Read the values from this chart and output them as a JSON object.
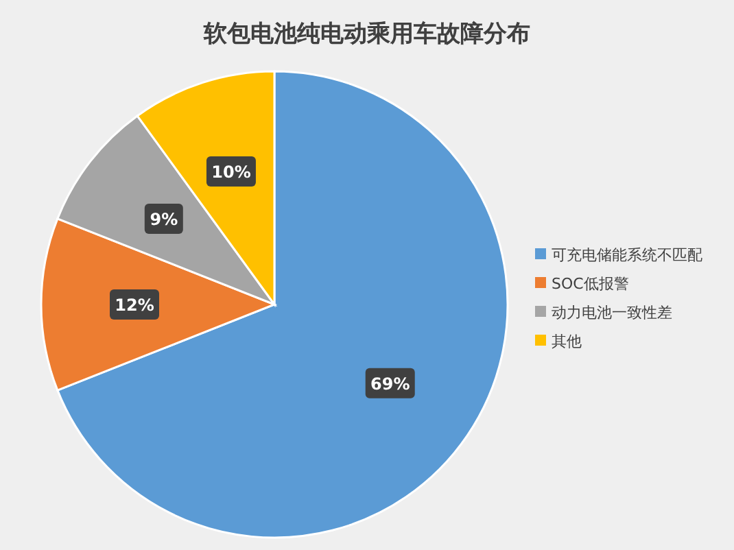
{
  "chart_data": {
    "type": "pie",
    "title": "软包电池纯电动乘用车故障分布",
    "categories": [
      "可充电储能系统不匹配",
      "SOC低报警",
      "动力电池一致性差",
      "其他"
    ],
    "values": [
      69,
      12,
      9,
      10
    ],
    "colors": [
      "#5b9bd5",
      "#ed7d31",
      "#a5a5a5",
      "#ffc000"
    ],
    "value_labels": [
      "69%",
      "12%",
      "9%",
      "10%"
    ],
    "legend": "right"
  }
}
